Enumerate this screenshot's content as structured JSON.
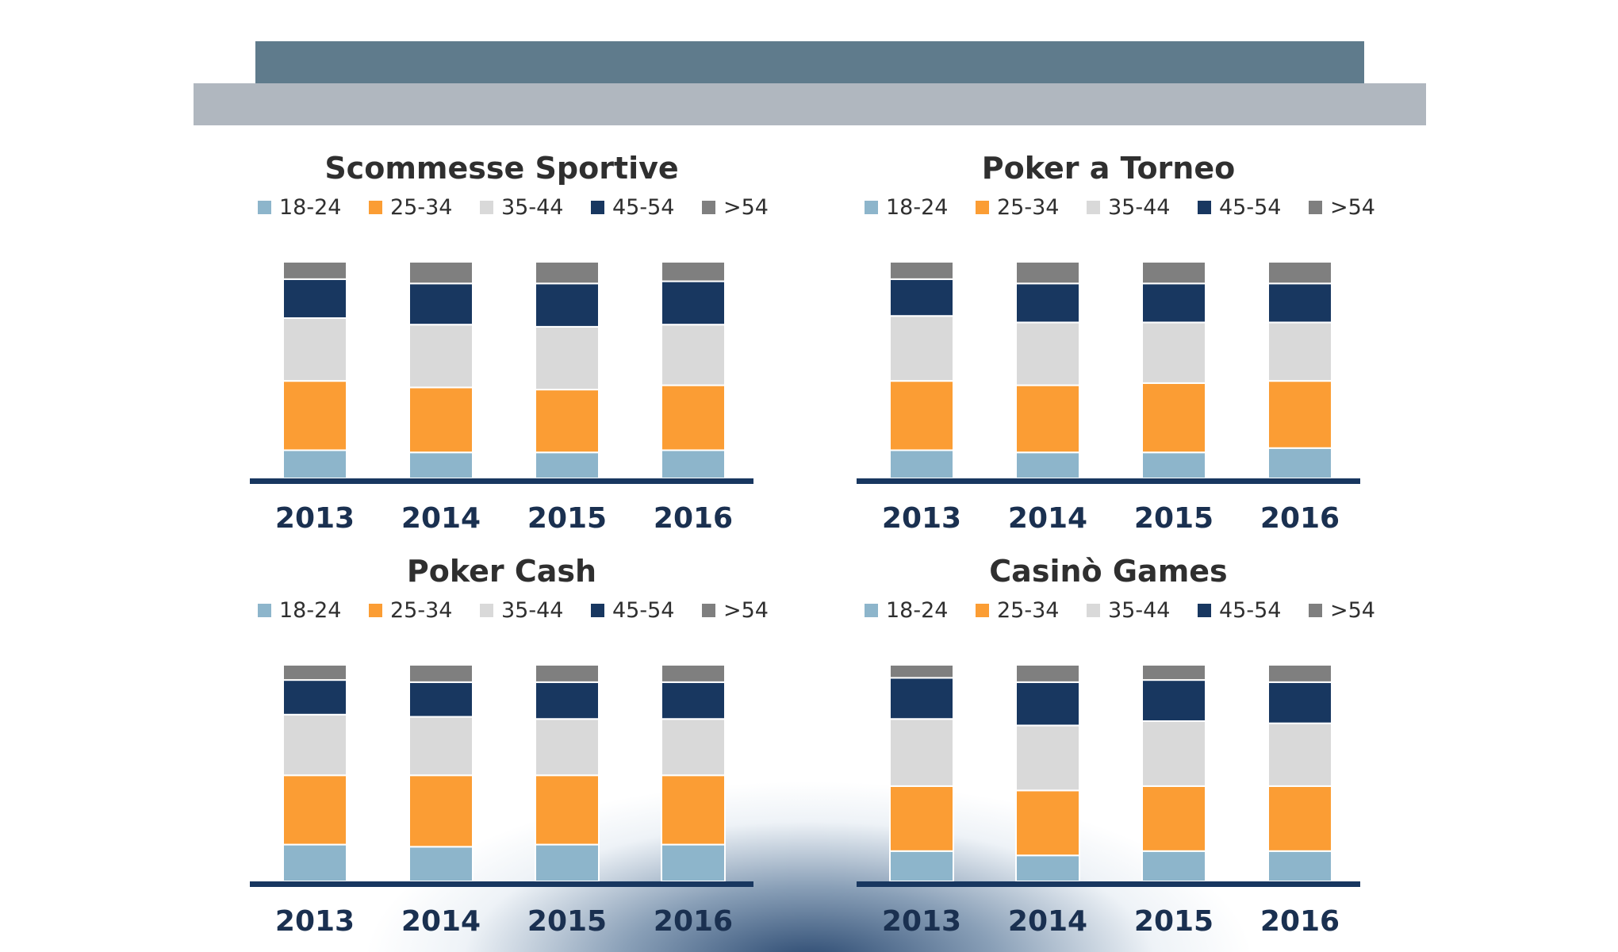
{
  "age_groups": [
    "18-24",
    "25-34",
    "35-44",
    "45-54",
    ">54"
  ],
  "colors": {
    "18-24": "#8db5cb",
    "25-34": "#fb9d34",
    "35-44": "#d9d9d9",
    "45-54": "#183760",
    ">54": "#7f7f7f",
    "axis": "#183760"
  },
  "chart_data": [
    {
      "type": "bar",
      "stacked": true,
      "title": "Scommesse Sportive",
      "categories": [
        "2013",
        "2014",
        "2015",
        "2016"
      ],
      "series": [
        {
          "name": "18-24",
          "values": [
            13,
            12,
            12,
            13
          ]
        },
        {
          "name": "25-34",
          "values": [
            32,
            30,
            29,
            30
          ]
        },
        {
          "name": "35-44",
          "values": [
            29,
            29,
            29,
            28
          ]
        },
        {
          "name": "45-54",
          "values": [
            18,
            19,
            20,
            20
          ]
        },
        {
          "name": ">54",
          "values": [
            8,
            10,
            10,
            9
          ]
        }
      ],
      "ylim": [
        0,
        100
      ],
      "legend": "top"
    },
    {
      "type": "bar",
      "stacked": true,
      "title": "Poker a Torneo",
      "categories": [
        "2013",
        "2014",
        "2015",
        "2016"
      ],
      "series": [
        {
          "name": "18-24",
          "values": [
            13,
            12,
            12,
            14
          ]
        },
        {
          "name": "25-34",
          "values": [
            32,
            31,
            32,
            31
          ]
        },
        {
          "name": "35-44",
          "values": [
            30,
            29,
            28,
            27
          ]
        },
        {
          "name": "45-54",
          "values": [
            17,
            18,
            18,
            18
          ]
        },
        {
          "name": ">54",
          "values": [
            8,
            10,
            10,
            10
          ]
        }
      ],
      "ylim": [
        0,
        100
      ],
      "legend": "top"
    },
    {
      "type": "bar",
      "stacked": true,
      "title": "Poker Cash",
      "categories": [
        "2013",
        "2014",
        "2015",
        "2016"
      ],
      "series": [
        {
          "name": "18-24",
          "values": [
            17,
            16,
            17,
            17
          ]
        },
        {
          "name": "25-34",
          "values": [
            32,
            33,
            32,
            32
          ]
        },
        {
          "name": "35-44",
          "values": [
            28,
            27,
            26,
            26
          ]
        },
        {
          "name": "45-54",
          "values": [
            16,
            16,
            17,
            17
          ]
        },
        {
          "name": ">54",
          "values": [
            7,
            8,
            8,
            8
          ]
        }
      ],
      "ylim": [
        0,
        100
      ],
      "legend": "top"
    },
    {
      "type": "bar",
      "stacked": true,
      "title": "Casinò Games",
      "categories": [
        "2013",
        "2014",
        "2015",
        "2016"
      ],
      "series": [
        {
          "name": "18-24",
          "values": [
            14,
            12,
            14,
            14
          ]
        },
        {
          "name": "25-34",
          "values": [
            30,
            30,
            30,
            30
          ]
        },
        {
          "name": "35-44",
          "values": [
            31,
            30,
            30,
            29
          ]
        },
        {
          "name": "45-54",
          "values": [
            19,
            20,
            19,
            19
          ]
        },
        {
          "name": ">54",
          "values": [
            6,
            8,
            7,
            8
          ]
        }
      ],
      "ylim": [
        0,
        100
      ],
      "legend": "top"
    }
  ]
}
